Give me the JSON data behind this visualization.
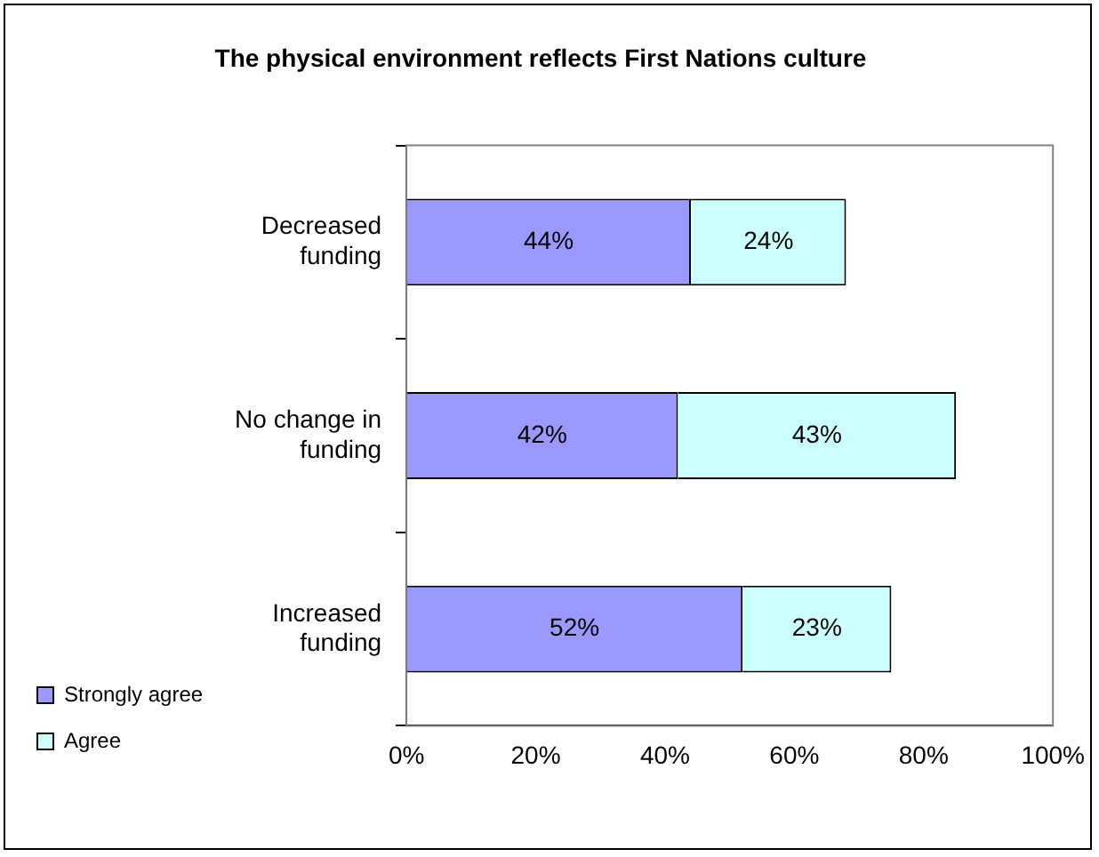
{
  "chart_data": {
    "type": "bar",
    "orientation": "horizontal",
    "stacked": true,
    "title": "The physical environment reflects First Nations culture",
    "categories": [
      "Decreased funding",
      "No change in funding",
      "Increased funding"
    ],
    "series": [
      {
        "name": "Strongly agree",
        "color": "#9999ff",
        "values": [
          44,
          42,
          52
        ],
        "value_labels": [
          "44%",
          "42%",
          "52%"
        ]
      },
      {
        "name": "Agree",
        "color": "#ccffff",
        "values": [
          24,
          43,
          23
        ],
        "value_labels": [
          "24%",
          "43%",
          "23%"
        ]
      }
    ],
    "xlim": [
      0,
      100
    ],
    "xticks": [
      {
        "value": 0,
        "label": "0%"
      },
      {
        "value": 20,
        "label": "20%"
      },
      {
        "value": 40,
        "label": "40%"
      },
      {
        "value": 60,
        "label": "60%"
      },
      {
        "value": 80,
        "label": "80%"
      },
      {
        "value": 100,
        "label": "100%"
      }
    ],
    "legend": "bottom left"
  }
}
